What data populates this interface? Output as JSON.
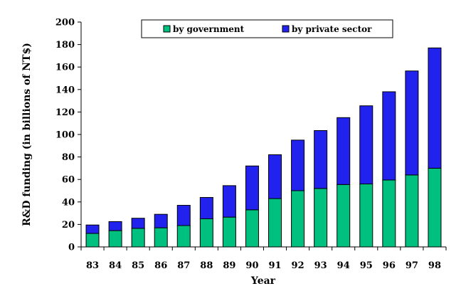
{
  "chart_data": {
    "type": "bar",
    "stacked": true,
    "xlabel": "Year",
    "ylabel": "R&D funding (in billions of NT$)",
    "ylim": [
      0,
      200
    ],
    "yticks": [
      0,
      20,
      40,
      60,
      80,
      100,
      120,
      140,
      160,
      180,
      200
    ],
    "categories": [
      "83",
      "84",
      "85",
      "86",
      "87",
      "88",
      "89",
      "90",
      "91",
      "92",
      "93",
      "94",
      "95",
      "96",
      "97",
      "98"
    ],
    "series": [
      {
        "name": "by government",
        "color": "#00c080",
        "values": [
          12,
          14.5,
          16.5,
          17,
          19,
          25,
          26.5,
          33,
          43,
          50,
          52,
          55.5,
          56,
          59.5,
          64,
          70
        ]
      },
      {
        "name": "by private sector",
        "color": "#2222ee",
        "values": [
          7.5,
          8,
          9,
          12,
          18,
          19,
          28,
          39,
          39,
          45,
          51.5,
          59.5,
          69.5,
          78.5,
          92.5,
          107
        ]
      }
    ],
    "legend_position": "top-right",
    "grid": false
  }
}
